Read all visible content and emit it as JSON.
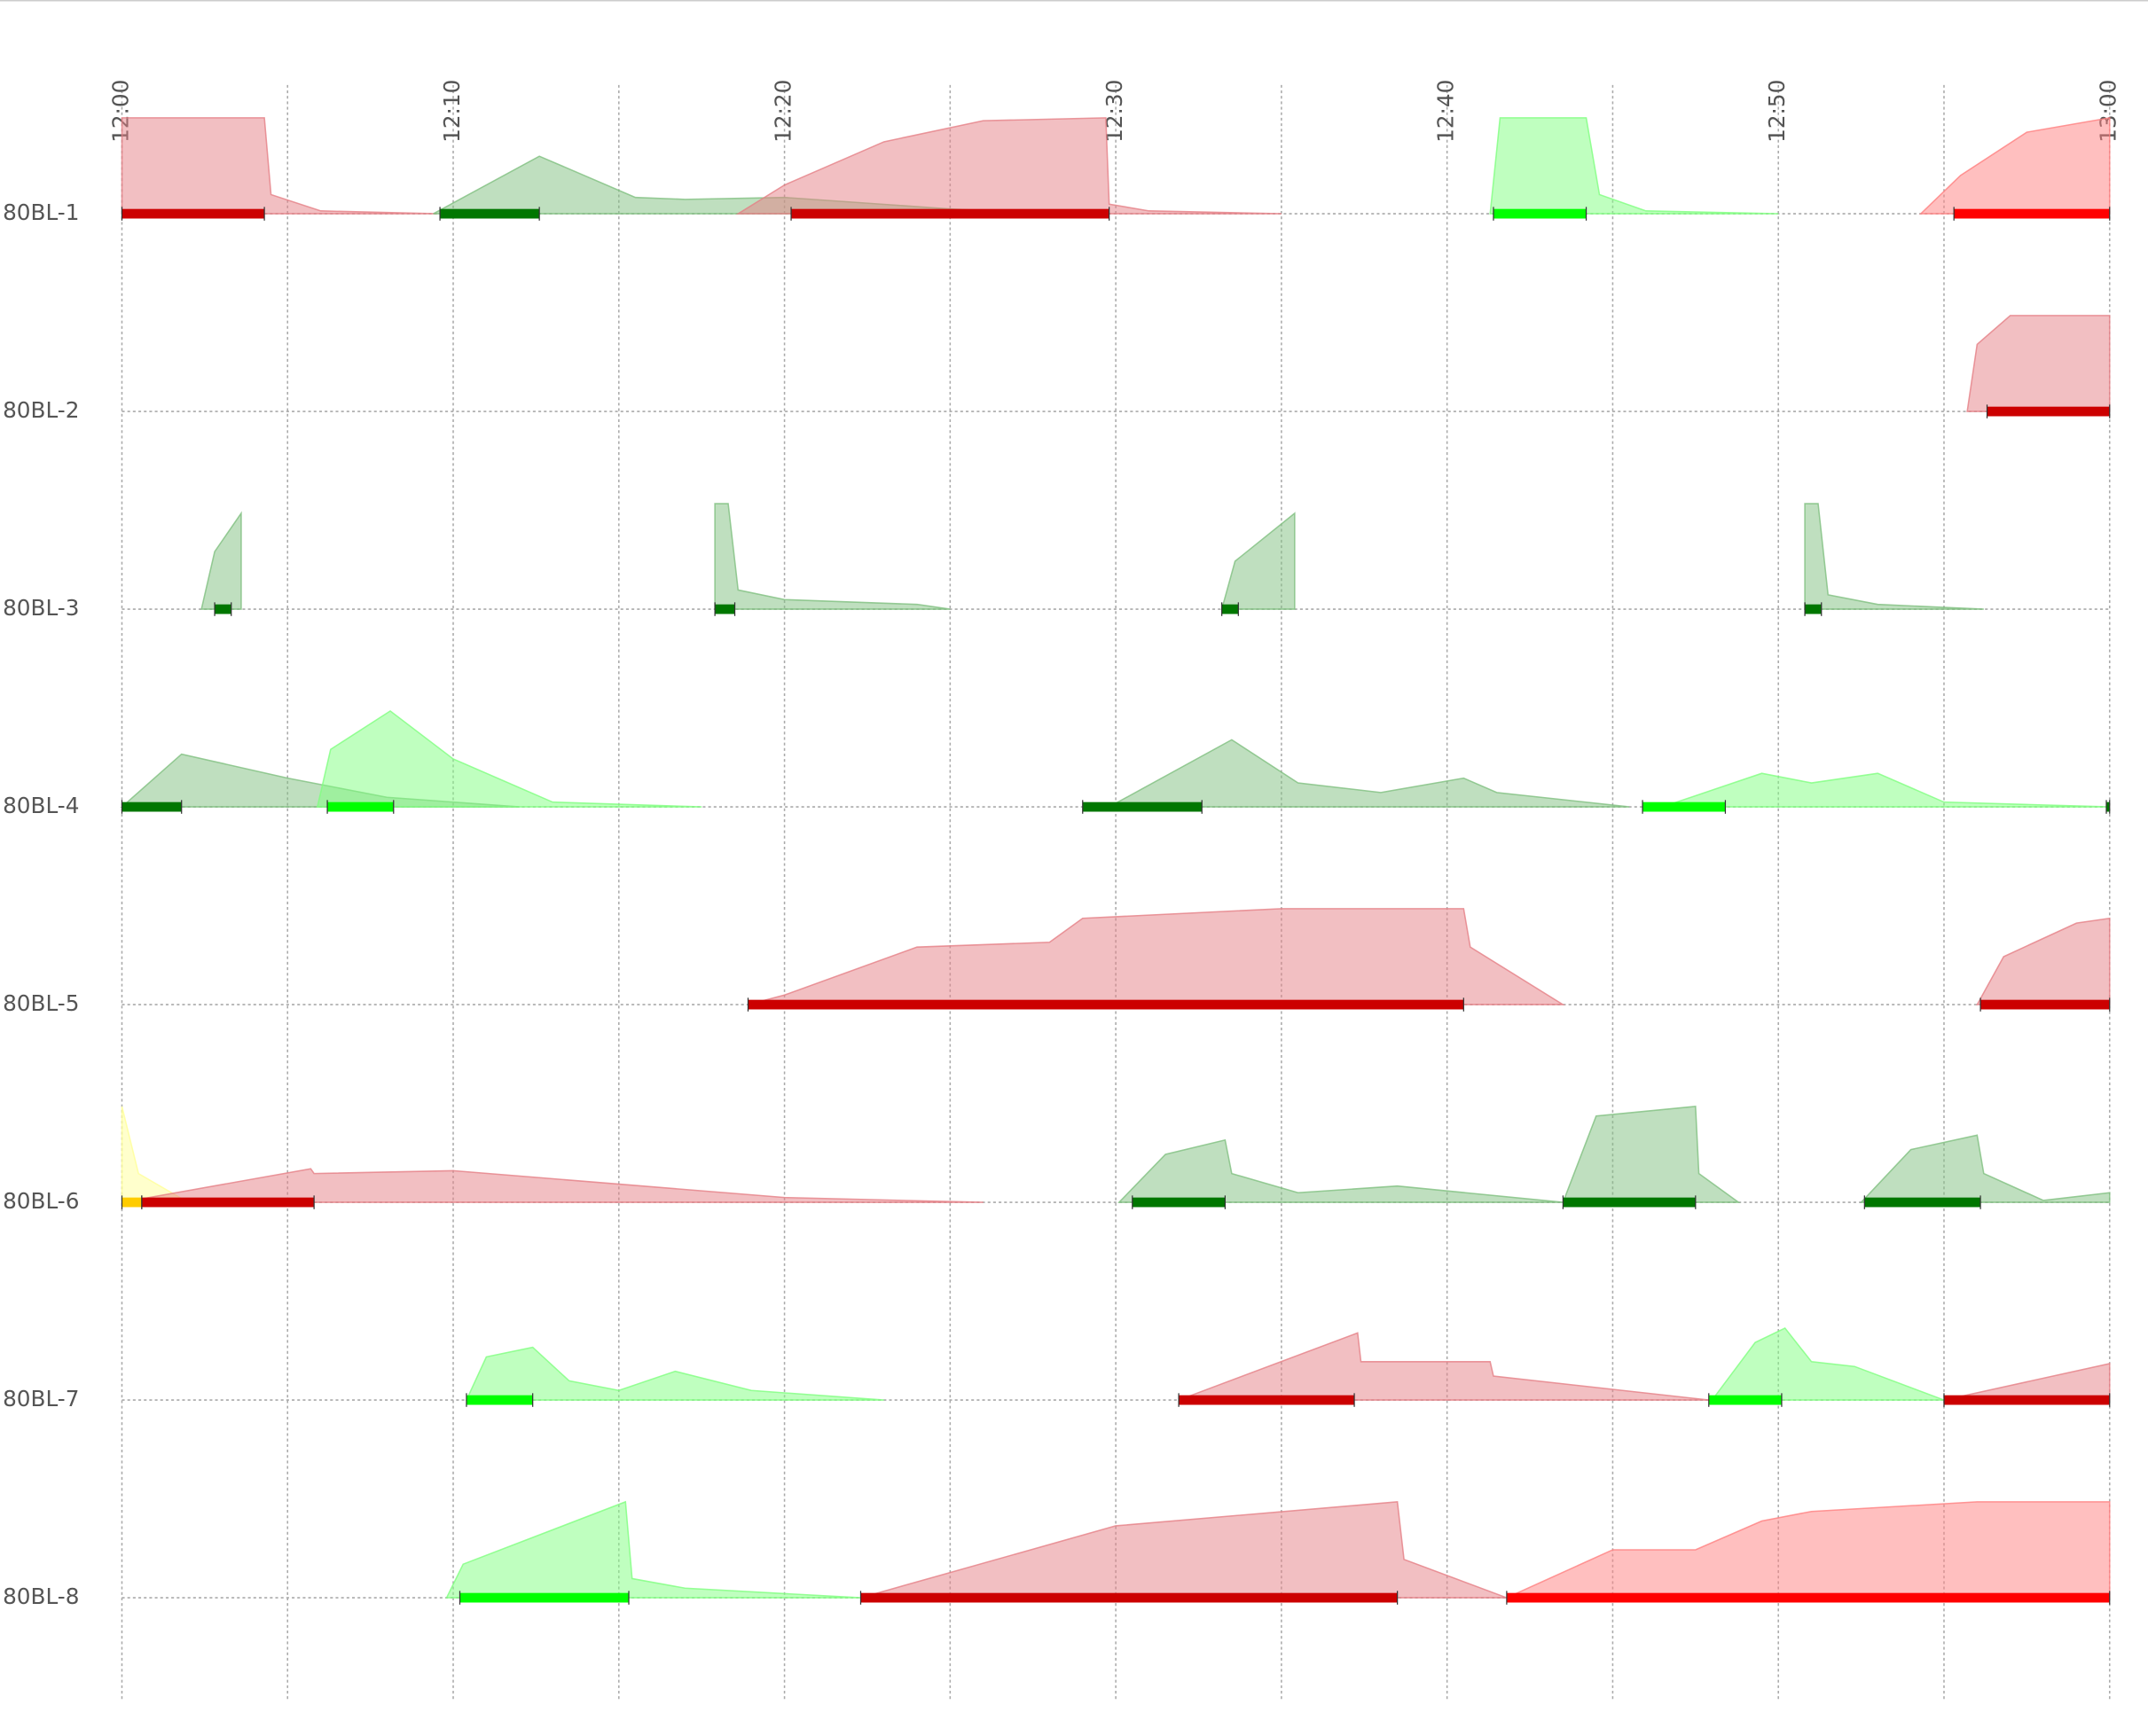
{
  "chart_data": {
    "type": "timeline",
    "xlim": [
      0,
      60
    ],
    "xticks": [
      {
        "value": 0,
        "label": "12:00"
      },
      {
        "value": 10,
        "label": "12:10"
      },
      {
        "value": 20,
        "label": "12:20"
      },
      {
        "value": 30,
        "label": "12:30"
      },
      {
        "value": 40,
        "label": "12:40"
      },
      {
        "value": 50,
        "label": "12:50"
      },
      {
        "value": 60,
        "label": "13:00"
      }
    ],
    "xminor": [
      5,
      15,
      25,
      35,
      45,
      55
    ],
    "rows": [
      {
        "label": "80BL-1",
        "bars": [
          {
            "start": 0,
            "end": 4.3,
            "color": "#cc0000"
          },
          {
            "start": 9.6,
            "end": 12.6,
            "color": "#007700"
          },
          {
            "start": 20.2,
            "end": 29.8,
            "color": "#cc0000"
          },
          {
            "start": 41.4,
            "end": 44.2,
            "color": "#00ff00"
          },
          {
            "start": 55.3,
            "end": 60,
            "color": "#ff0000"
          }
        ],
        "areas": [
          {
            "color": "#e57f86",
            "x": [
              0,
              0,
              4.3,
              4.5,
              6,
              9.5
            ],
            "values": [
              0,
              1,
              1,
              0.2,
              0.03,
              0
            ]
          },
          {
            "color": "#7fbf7f",
            "x": [
              9.4,
              12.6,
              15.5,
              17,
              20,
              25,
              28
            ],
            "values": [
              0,
              0.6,
              0.17,
              0.15,
              0.17,
              0.05,
              0
            ]
          },
          {
            "color": "#e57f86",
            "x": [
              18.6,
              20,
              23,
              26,
              29.7,
              29.8,
              31,
              35
            ],
            "values": [
              0,
              0.3,
              0.75,
              0.97,
              1,
              0.1,
              0.03,
              0
            ]
          },
          {
            "color": "#80ff80",
            "x": [
              41.3,
              41.6,
              44.2,
              44.6,
              46,
              50
            ],
            "values": [
              0,
              1,
              1,
              0.2,
              0.03,
              0
            ]
          },
          {
            "color": "#ff8080",
            "x": [
              54.3,
              55.5,
              57.5,
              60
            ],
            "values": [
              0,
              0.4,
              0.85,
              1
            ]
          }
        ]
      },
      {
        "label": "80BL-2",
        "bars": [
          {
            "start": 56.3,
            "end": 60,
            "color": "#cc0000"
          }
        ],
        "areas": [
          {
            "color": "#e57f86",
            "x": [
              55.7,
              56,
              57,
              60
            ],
            "values": [
              0,
              0.7,
              1,
              1
            ]
          }
        ]
      },
      {
        "label": "80BL-3",
        "bars": [
          {
            "start": 2.8,
            "end": 3.3,
            "color": "#007700"
          },
          {
            "start": 17.9,
            "end": 18.5,
            "color": "#007700"
          },
          {
            "start": 33.2,
            "end": 33.7,
            "color": "#007700"
          },
          {
            "start": 50.8,
            "end": 51.3,
            "color": "#007700"
          }
        ],
        "areas": [
          {
            "color": "#7fbf7f",
            "x": [
              2.4,
              2.8,
              3.6,
              3.6
            ],
            "values": [
              0,
              0.6,
              1,
              0
            ]
          },
          {
            "color": "#7fbf7f",
            "x": [
              17.9,
              17.9,
              18.3,
              18.6,
              20,
              24,
              25
            ],
            "values": [
              0,
              1.1,
              1.1,
              0.2,
              0.1,
              0.05,
              0
            ]
          },
          {
            "color": "#7fbf7f",
            "x": [
              33.2,
              33.6,
              35.4,
              35.4
            ],
            "values": [
              0,
              0.5,
              1,
              0
            ]
          },
          {
            "color": "#7fbf7f",
            "x": [
              50.8,
              50.8,
              51.2,
              51.5,
              53,
              56.2
            ],
            "values": [
              0,
              1.1,
              1.1,
              0.15,
              0.05,
              0
            ]
          }
        ]
      },
      {
        "label": "80BL-4",
        "bars": [
          {
            "start": 0,
            "end": 1.8,
            "color": "#007700"
          },
          {
            "start": 6.2,
            "end": 8.2,
            "color": "#00ff00"
          },
          {
            "start": 29,
            "end": 32.6,
            "color": "#007700"
          },
          {
            "start": 45.9,
            "end": 48.4,
            "color": "#00ff00"
          },
          {
            "start": 59.9,
            "end": 60,
            "color": "#007700"
          }
        ],
        "areas": [
          {
            "color": "#7fbf7f",
            "x": [
              0,
              1.8,
              5,
              8,
              12
            ],
            "values": [
              0,
              0.55,
              0.3,
              0.1,
              0
            ]
          },
          {
            "color": "#80ff80",
            "x": [
              5.9,
              6.3,
              8.1,
              10,
              13,
              17.5
            ],
            "values": [
              0,
              0.6,
              1,
              0.5,
              0.05,
              0
            ]
          },
          {
            "color": "#7fbf7f",
            "x": [
              29.8,
              33.5,
              35.5,
              38,
              40.5,
              41.5,
              45.5
            ],
            "values": [
              0,
              0.7,
              0.25,
              0.15,
              0.3,
              0.15,
              0
            ]
          },
          {
            "color": "#80ff80",
            "x": [
              46.5,
              49.5,
              51,
              53,
              55,
              60
            ],
            "values": [
              0,
              0.35,
              0.25,
              0.35,
              0.05,
              0
            ]
          }
        ]
      },
      {
        "label": "80BL-5",
        "bars": [
          {
            "start": 18.9,
            "end": 40.5,
            "color": "#cc0000"
          },
          {
            "start": 56.1,
            "end": 60,
            "color": "#cc0000"
          }
        ],
        "areas": [
          {
            "color": "#e57f86",
            "x": [
              18.9,
              20,
              24,
              28,
              29,
              35,
              40.5,
              40.7,
              43.5
            ],
            "values": [
              0,
              0.1,
              0.6,
              0.65,
              0.9,
              1,
              1,
              0.6,
              0
            ]
          },
          {
            "color": "#e57f86",
            "x": [
              56,
              56.8,
              59,
              60
            ],
            "values": [
              0,
              0.5,
              0.85,
              0.9
            ]
          }
        ]
      },
      {
        "label": "80BL-6",
        "bars": [
          {
            "start": 0,
            "end": 0.6,
            "color": "#ffcc00"
          },
          {
            "start": 0.6,
            "end": 5.8,
            "color": "#cc0000"
          },
          {
            "start": 30.5,
            "end": 33.3,
            "color": "#007700"
          },
          {
            "start": 43.5,
            "end": 47.5,
            "color": "#007700"
          },
          {
            "start": 52.6,
            "end": 56.1,
            "color": "#007700"
          }
        ],
        "areas": [
          {
            "color": "#ffff99",
            "x": [
              0,
              0,
              0.5,
              2
            ],
            "values": [
              0,
              1,
              0.3,
              0
            ]
          },
          {
            "color": "#e57f86",
            "x": [
              0,
              5.7,
              5.8,
              10,
              20,
              26
            ],
            "values": [
              0,
              0.35,
              0.3,
              0.33,
              0.05,
              0
            ]
          },
          {
            "color": "#7fbf7f",
            "x": [
              30.1,
              31.5,
              33.3,
              33.5,
              35.5,
              38.5,
              43.5
            ],
            "values": [
              0,
              0.5,
              0.65,
              0.3,
              0.1,
              0.17,
              0
            ]
          },
          {
            "color": "#7fbf7f",
            "x": [
              43.5,
              44.5,
              47.5,
              47.6,
              48.8
            ],
            "values": [
              0,
              0.9,
              1,
              0.3,
              0
            ]
          },
          {
            "color": "#7fbf7f",
            "x": [
              52.5,
              54,
              56,
              56.2,
              58,
              60
            ],
            "values": [
              0,
              0.55,
              0.7,
              0.3,
              0.02,
              0.1
            ]
          }
        ]
      },
      {
        "label": "80BL-7",
        "bars": [
          {
            "start": 10.4,
            "end": 12.4,
            "color": "#00ff00"
          },
          {
            "start": 31.9,
            "end": 37.2,
            "color": "#cc0000"
          },
          {
            "start": 47.9,
            "end": 50.1,
            "color": "#00ff00"
          },
          {
            "start": 55,
            "end": 60,
            "color": "#cc0000"
          }
        ],
        "areas": [
          {
            "color": "#80ff80",
            "x": [
              10.4,
              11,
              12.4,
              13.5,
              15,
              16.7,
              19,
              23
            ],
            "values": [
              0,
              0.45,
              0.55,
              0.2,
              0.1,
              0.3,
              0.1,
              0
            ]
          },
          {
            "color": "#e57f86",
            "x": [
              31.9,
              37.3,
              37.4,
              41.3,
              41.4,
              47.9
            ],
            "values": [
              0,
              0.7,
              0.4,
              0.4,
              0.25,
              0
            ]
          },
          {
            "color": "#80ff80",
            "x": [
              48,
              49.3,
              50.2,
              51,
              52.3,
              55
            ],
            "values": [
              0,
              0.6,
              0.75,
              0.4,
              0.35,
              0
            ]
          },
          {
            "color": "#e57f86",
            "x": [
              55,
              60
            ],
            "values": [
              0,
              0.38
            ]
          }
        ]
      },
      {
        "label": "80BL-8",
        "bars": [
          {
            "start": 10.2,
            "end": 15.3,
            "color": "#00ff00"
          },
          {
            "start": 22.3,
            "end": 38.5,
            "color": "#cc0000"
          },
          {
            "start": 41.8,
            "end": 60,
            "color": "#ff0000"
          }
        ],
        "areas": [
          {
            "color": "#80ff80",
            "x": [
              9.8,
              10.3,
              15.2,
              15.4,
              17,
              22.3
            ],
            "values": [
              0,
              0.35,
              1,
              0.2,
              0.1,
              0
            ]
          },
          {
            "color": "#e57f86",
            "x": [
              22.3,
              30,
              38.5,
              38.7,
              41.8
            ],
            "values": [
              0,
              0.75,
              1,
              0.4,
              0
            ]
          },
          {
            "color": "#ff8080",
            "x": [
              41.8,
              45,
              47.5,
              49.5,
              51,
              56,
              60
            ],
            "values": [
              0,
              0.5,
              0.5,
              0.8,
              0.9,
              1,
              1
            ]
          }
        ]
      }
    ]
  }
}
